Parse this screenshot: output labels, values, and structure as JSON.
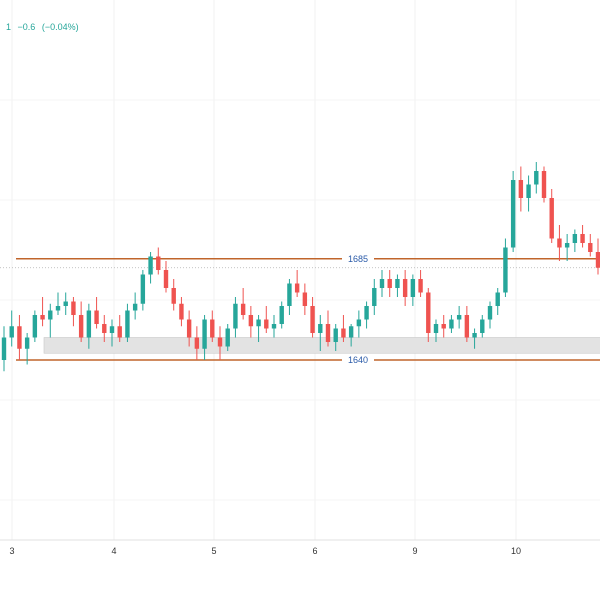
{
  "legend": {
    "prefix": "1",
    "change": "−0.6",
    "change_pct": "(−0.04%)",
    "color": "#26a69a"
  },
  "colors": {
    "up": "#26a69a",
    "down": "#ef5350",
    "level_line": "#c0652b",
    "level_label": "#2a5aa8",
    "zone_fill": "#e3e3e3",
    "price_line": "#b0b0b0"
  },
  "chart_data": {
    "type": "candlestick",
    "x_ticks": [
      "3",
      "4",
      "5",
      "6",
      "9",
      "10"
    ],
    "levels": [
      {
        "label": "1685",
        "value": 1685
      },
      {
        "label": "1640",
        "value": 1640
      }
    ],
    "zone": {
      "low": 1643,
      "high": 1650
    },
    "current_price": 1681,
    "ylim": [
      1560,
      1800
    ],
    "ohlc": [
      [
        1640,
        1655,
        1635,
        1650
      ],
      [
        1650,
        1662,
        1646,
        1655
      ],
      [
        1655,
        1660,
        1640,
        1645
      ],
      [
        1645,
        1652,
        1638,
        1650
      ],
      [
        1650,
        1662,
        1648,
        1660
      ],
      [
        1660,
        1668,
        1655,
        1658
      ],
      [
        1658,
        1665,
        1650,
        1662
      ],
      [
        1662,
        1670,
        1660,
        1664
      ],
      [
        1664,
        1670,
        1660,
        1666
      ],
      [
        1666,
        1668,
        1655,
        1660
      ],
      [
        1660,
        1666,
        1648,
        1650
      ],
      [
        1650,
        1665,
        1645,
        1662
      ],
      [
        1662,
        1668,
        1654,
        1656
      ],
      [
        1656,
        1660,
        1648,
        1652
      ],
      [
        1652,
        1658,
        1646,
        1655
      ],
      [
        1655,
        1660,
        1648,
        1650
      ],
      [
        1650,
        1665,
        1648,
        1662
      ],
      [
        1662,
        1670,
        1658,
        1665
      ],
      [
        1665,
        1680,
        1662,
        1678
      ],
      [
        1678,
        1688,
        1674,
        1686
      ],
      [
        1686,
        1690,
        1678,
        1680
      ],
      [
        1680,
        1684,
        1670,
        1672
      ],
      [
        1672,
        1676,
        1662,
        1665
      ],
      [
        1665,
        1668,
        1655,
        1658
      ],
      [
        1658,
        1662,
        1646,
        1650
      ],
      [
        1650,
        1655,
        1640,
        1645
      ],
      [
        1645,
        1660,
        1640,
        1658
      ],
      [
        1658,
        1662,
        1648,
        1650
      ],
      [
        1650,
        1655,
        1640,
        1646
      ],
      [
        1646,
        1656,
        1644,
        1654
      ],
      [
        1654,
        1668,
        1650,
        1665
      ],
      [
        1665,
        1672,
        1658,
        1660
      ],
      [
        1660,
        1664,
        1650,
        1655
      ],
      [
        1655,
        1660,
        1648,
        1658
      ],
      [
        1658,
        1664,
        1652,
        1654
      ],
      [
        1654,
        1660,
        1650,
        1656
      ],
      [
        1656,
        1666,
        1654,
        1664
      ],
      [
        1664,
        1676,
        1660,
        1674
      ],
      [
        1674,
        1680,
        1668,
        1670
      ],
      [
        1670,
        1674,
        1660,
        1664
      ],
      [
        1664,
        1668,
        1650,
        1652
      ],
      [
        1652,
        1660,
        1644,
        1656
      ],
      [
        1656,
        1662,
        1646,
        1648
      ],
      [
        1648,
        1656,
        1644,
        1654
      ],
      [
        1654,
        1660,
        1648,
        1650
      ],
      [
        1650,
        1656,
        1646,
        1655
      ],
      [
        1655,
        1662,
        1650,
        1658
      ],
      [
        1658,
        1666,
        1654,
        1664
      ],
      [
        1664,
        1676,
        1660,
        1672
      ],
      [
        1672,
        1680,
        1668,
        1676
      ],
      [
        1676,
        1680,
        1668,
        1672
      ],
      [
        1672,
        1678,
        1668,
        1676
      ],
      [
        1676,
        1680,
        1664,
        1668
      ],
      [
        1668,
        1678,
        1664,
        1676
      ],
      [
        1676,
        1680,
        1668,
        1670
      ],
      [
        1670,
        1672,
        1648,
        1652
      ],
      [
        1652,
        1658,
        1648,
        1656
      ],
      [
        1656,
        1660,
        1650,
        1654
      ],
      [
        1654,
        1660,
        1652,
        1658
      ],
      [
        1658,
        1664,
        1654,
        1660
      ],
      [
        1660,
        1664,
        1648,
        1650
      ],
      [
        1650,
        1654,
        1645,
        1652
      ],
      [
        1652,
        1660,
        1650,
        1658
      ],
      [
        1658,
        1666,
        1654,
        1664
      ],
      [
        1664,
        1672,
        1660,
        1670
      ],
      [
        1670,
        1694,
        1668,
        1690
      ],
      [
        1690,
        1724,
        1688,
        1720
      ],
      [
        1720,
        1726,
        1706,
        1712
      ],
      [
        1712,
        1722,
        1706,
        1718
      ],
      [
        1718,
        1728,
        1714,
        1724
      ],
      [
        1724,
        1726,
        1710,
        1712
      ],
      [
        1712,
        1716,
        1692,
        1694
      ],
      [
        1694,
        1700,
        1684,
        1690
      ],
      [
        1690,
        1696,
        1684,
        1692
      ],
      [
        1692,
        1698,
        1688,
        1696
      ],
      [
        1696,
        1700,
        1690,
        1692
      ],
      [
        1692,
        1696,
        1686,
        1688
      ],
      [
        1688,
        1694,
        1678,
        1681
      ]
    ]
  }
}
